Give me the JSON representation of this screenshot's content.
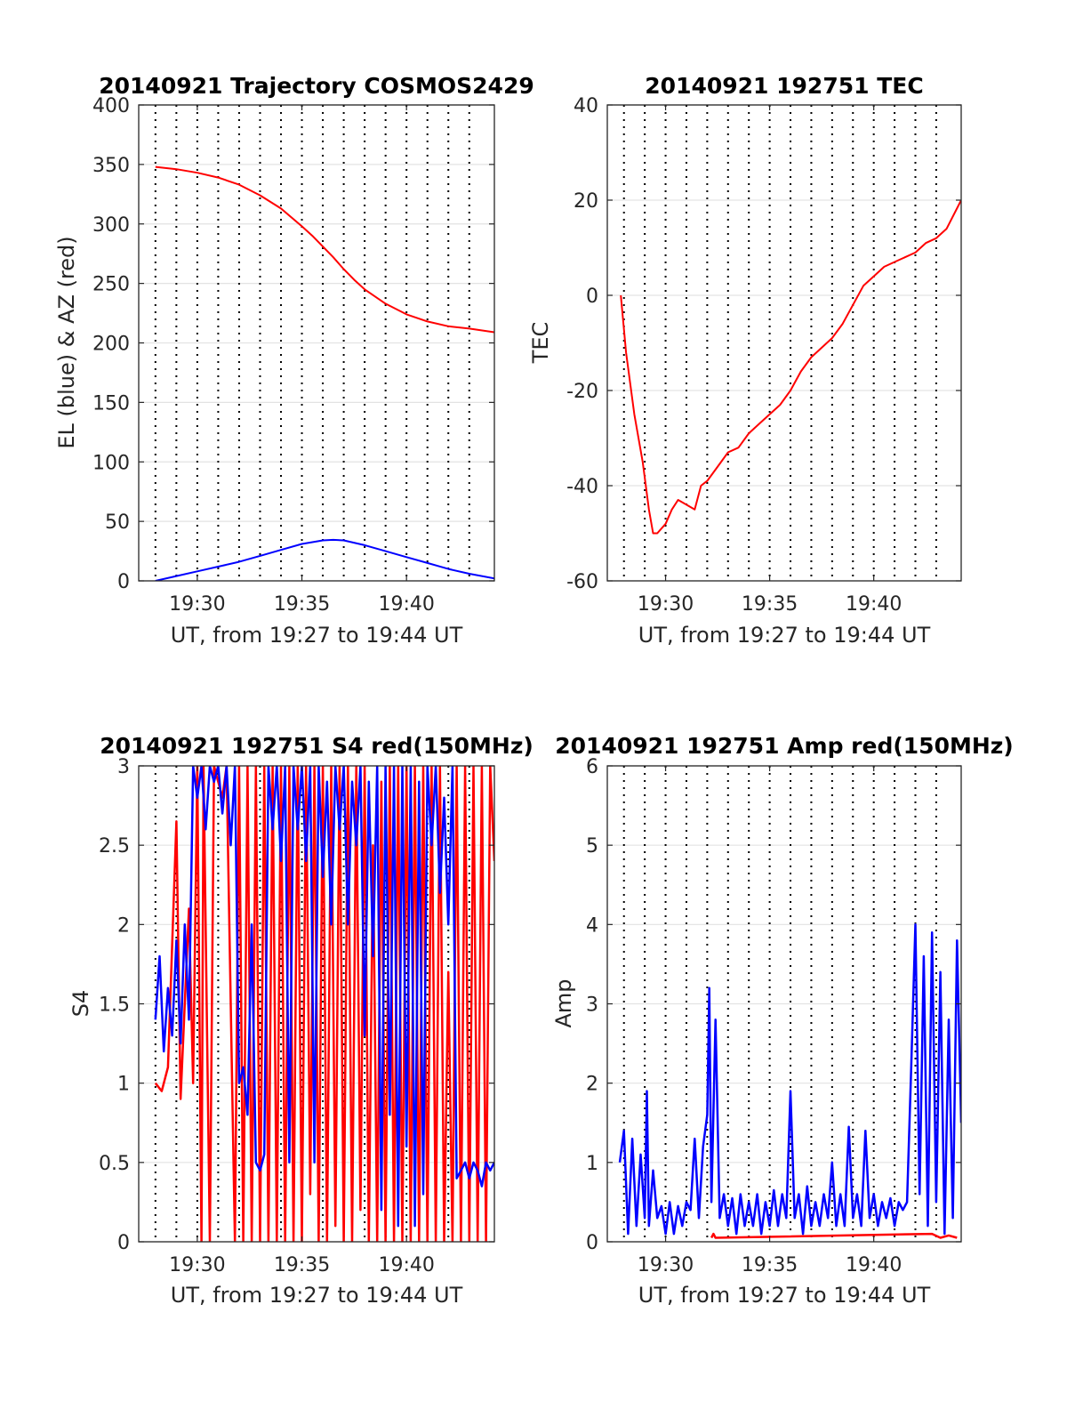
{
  "chart_data": [
    {
      "type": "line",
      "title": "20140921 Trajectory COSMOS2429",
      "xlabel": "UT, from 19:27 to 19:44 UT",
      "ylabel": "EL (blue) & AZ (red)",
      "xlim_minutes": [
        27.2,
        44.2
      ],
      "ylim": [
        0,
        400
      ],
      "xticks": [
        30,
        35,
        40
      ],
      "xtick_labels": [
        "19:30",
        "19:35",
        "19:40"
      ],
      "yticks": [
        0,
        50,
        100,
        150,
        200,
        250,
        300,
        350,
        400
      ],
      "ytick_labels": [
        "0",
        "50",
        "100",
        "150",
        "200",
        "250",
        "300",
        "350",
        "400"
      ],
      "vertical_dotted_lines_minutes": [
        28,
        29,
        30,
        31,
        32,
        33,
        34,
        35,
        36,
        37,
        38,
        39,
        40,
        41,
        42,
        43
      ],
      "grid": "horizontal",
      "series": [
        {
          "color": "#ff0000",
          "x": [
            28,
            29,
            30,
            31,
            32,
            33,
            34,
            35,
            35.5,
            36,
            36.5,
            37,
            37.5,
            38,
            39,
            40,
            41,
            42,
            43,
            44.2
          ],
          "y": [
            348,
            346,
            343,
            339,
            333,
            324,
            313,
            298,
            290,
            281,
            272,
            262,
            253,
            245,
            233,
            224,
            218,
            214,
            212,
            209
          ]
        },
        {
          "color": "#0000ff",
          "x": [
            28,
            29,
            30,
            31,
            32,
            33,
            34,
            35,
            36,
            36.5,
            37,
            38,
            39,
            40,
            41,
            42,
            43,
            44.2
          ],
          "y": [
            0,
            4,
            8,
            12,
            16,
            21,
            26,
            31,
            34,
            34.5,
            34,
            30,
            25,
            20,
            15,
            10,
            6,
            2
          ]
        }
      ]
    },
    {
      "type": "line",
      "title": "20140921 192751 TEC",
      "xlabel": "UT, from 19:27 to 19:44 UT",
      "ylabel": "TEC",
      "xlim_minutes": [
        27.2,
        44.2
      ],
      "ylim": [
        -60,
        40
      ],
      "xticks": [
        30,
        35,
        40
      ],
      "xtick_labels": [
        "19:30",
        "19:35",
        "19:40"
      ],
      "yticks": [
        -60,
        -40,
        -20,
        0,
        20,
        40
      ],
      "ytick_labels": [
        "-60",
        "-40",
        "-20",
        "0",
        "20",
        "40"
      ],
      "vertical_dotted_lines_minutes": [
        28,
        29,
        30,
        31,
        32,
        33,
        34,
        35,
        36,
        37,
        38,
        39,
        40,
        41,
        42,
        43
      ],
      "grid": "horizontal",
      "series": [
        {
          "color": "#ff0000",
          "x": [
            27.85,
            28.1,
            28.5,
            28.9,
            29.2,
            29.4,
            29.6,
            30.0,
            30.3,
            30.6,
            31.0,
            31.4,
            31.7,
            32.0,
            32.5,
            33.0,
            33.5,
            34.0,
            34.5,
            35.0,
            35.5,
            36.0,
            36.5,
            37.0,
            37.5,
            38.0,
            38.5,
            39.0,
            39.5,
            40.0,
            40.5,
            41.0,
            41.5,
            42.0,
            42.5,
            43.0,
            43.5,
            44.2
          ],
          "y": [
            0,
            -12,
            -25,
            -35,
            -45,
            -50,
            -50,
            -48,
            -45,
            -43,
            -44,
            -45,
            -40,
            -39,
            -36,
            -33,
            -32,
            -29,
            -27,
            -25,
            -23,
            -20,
            -16,
            -13,
            -11,
            -9,
            -6,
            -2,
            2,
            4,
            6,
            7,
            8,
            9,
            11,
            12,
            14,
            20
          ]
        }
      ]
    },
    {
      "type": "line",
      "title": "20140921 192751 S4 red(150MHz)",
      "xlabel": "UT, from 19:27 to 19:44 UT",
      "ylabel": "S4",
      "xlim_minutes": [
        27.2,
        44.2
      ],
      "ylim": [
        0,
        3
      ],
      "xticks": [
        30,
        35,
        40
      ],
      "xtick_labels": [
        "19:30",
        "19:35",
        "19:40"
      ],
      "yticks": [
        0,
        0.5,
        1,
        1.5,
        2,
        2.5,
        3
      ],
      "ytick_labels": [
        "0",
        "0.5",
        "1",
        "1.5",
        "2",
        "2.5",
        "3"
      ],
      "vertical_dotted_lines_minutes": [
        28,
        29,
        30,
        31,
        32,
        33,
        34,
        35,
        36,
        37,
        38,
        39,
        40,
        41,
        42,
        43
      ],
      "grid": "horizontal",
      "series": [
        {
          "color": "#ff0000",
          "x": [
            28.0,
            28.3,
            28.6,
            29.0,
            29.2,
            29.6,
            29.8,
            30.0,
            30.2,
            30.3,
            30.6,
            30.8,
            31.2,
            31.4,
            31.8,
            32.0,
            32.2,
            32.4,
            32.6,
            32.8,
            33.0,
            33.2,
            33.4,
            33.6,
            33.8,
            34.0,
            34.2,
            34.4,
            34.6,
            34.8,
            35.0,
            35.2,
            35.4,
            35.6,
            35.8,
            36.0,
            36.2,
            36.4,
            36.6,
            36.8,
            37.0,
            37.2,
            37.4,
            37.6,
            37.8,
            38.0,
            38.2,
            38.4,
            38.6,
            38.8,
            39.0,
            39.2,
            39.4,
            39.6,
            39.8,
            40.0,
            40.2,
            40.4,
            40.6,
            40.8,
            41.0,
            41.2,
            41.4,
            41.6,
            41.8,
            42.0,
            42.2,
            42.4,
            42.6,
            42.8,
            43.0,
            43.2,
            43.4,
            43.6,
            43.8,
            44.0,
            44.2
          ],
          "y": [
            1.0,
            0.95,
            1.1,
            2.65,
            0.9,
            2.1,
            1.0,
            3.0,
            0.0,
            3.0,
            0.0,
            3.0,
            2.8,
            3.0,
            0.0,
            3.0,
            0.0,
            3.0,
            0.0,
            3.0,
            0.0,
            3.0,
            0.0,
            3.0,
            0.0,
            3.0,
            0.0,
            3.0,
            0.0,
            3.0,
            0.0,
            3.0,
            0.3,
            3.0,
            0.0,
            3.0,
            0.0,
            3.0,
            0.1,
            3.0,
            0.0,
            3.0,
            0.0,
            3.0,
            0.2,
            3.0,
            0.0,
            2.5,
            0.0,
            2.9,
            0.0,
            3.0,
            0.0,
            3.0,
            0.0,
            3.0,
            0.0,
            3.0,
            0.0,
            3.0,
            0.0,
            3.0,
            0.0,
            3.0,
            0.0,
            1.7,
            0.0,
            3.0,
            0.0,
            3.0,
            0.0,
            3.0,
            0.0,
            3.0,
            0.0,
            3.0,
            2.4
          ]
        },
        {
          "color": "#0000ff",
          "x": [
            28.0,
            28.2,
            28.4,
            28.6,
            28.8,
            29.0,
            29.2,
            29.4,
            29.6,
            29.8,
            30.0,
            30.2,
            30.4,
            30.6,
            30.8,
            31.0,
            31.2,
            31.4,
            31.6,
            31.8,
            32.0,
            32.2,
            32.4,
            32.6,
            32.8,
            33.0,
            33.2,
            33.4,
            33.6,
            33.8,
            34.0,
            34.2,
            34.4,
            34.6,
            34.8,
            35.0,
            35.2,
            35.4,
            35.6,
            35.8,
            36.0,
            36.2,
            36.4,
            36.6,
            36.8,
            37.0,
            37.2,
            37.4,
            37.6,
            37.8,
            38.0,
            38.2,
            38.4,
            38.6,
            38.8,
            39.0,
            39.2,
            39.4,
            39.6,
            39.8,
            40.0,
            40.2,
            40.4,
            40.6,
            40.8,
            41.0,
            41.2,
            41.4,
            41.6,
            41.8,
            42.0,
            42.2,
            42.4,
            42.6,
            42.8,
            43.0,
            43.2,
            43.4,
            43.6,
            43.8,
            44.0,
            44.2
          ],
          "y": [
            1.4,
            1.8,
            1.2,
            1.6,
            1.3,
            1.9,
            1.25,
            2.0,
            1.4,
            3.0,
            2.8,
            3.0,
            2.6,
            3.0,
            2.9,
            3.0,
            2.7,
            3.0,
            2.5,
            3.0,
            1.0,
            1.1,
            0.8,
            2.0,
            0.5,
            0.45,
            0.55,
            3.0,
            2.6,
            3.0,
            2.4,
            3.0,
            0.5,
            3.0,
            2.6,
            3.0,
            2.4,
            3.0,
            0.5,
            3.0,
            2.3,
            2.9,
            2.0,
            3.0,
            2.6,
            3.0,
            2.0,
            2.9,
            2.5,
            3.0,
            1.3,
            2.9,
            1.8,
            3.0,
            0.2,
            3.0,
            0.8,
            3.0,
            0.1,
            3.0,
            0.6,
            3.0,
            0.1,
            2.9,
            0.3,
            3.0,
            2.5,
            3.0,
            2.2,
            2.8,
            2.0,
            3.0,
            0.4,
            0.45,
            0.5,
            0.4,
            0.5,
            0.45,
            0.35,
            0.5,
            0.45,
            0.5
          ]
        }
      ]
    },
    {
      "type": "line",
      "title": "20140921 192751 Amp red(150MHz)",
      "xlabel": "UT, from 19:27 to 19:44 UT",
      "ylabel": "Amp",
      "xlim_minutes": [
        27.2,
        44.2
      ],
      "ylim": [
        0,
        6
      ],
      "xticks": [
        30,
        35,
        40
      ],
      "xtick_labels": [
        "19:30",
        "19:35",
        "19:40"
      ],
      "yticks": [
        0,
        1,
        2,
        3,
        4,
        5,
        6
      ],
      "ytick_labels": [
        "0",
        "1",
        "2",
        "3",
        "4",
        "5",
        "6"
      ],
      "vertical_dotted_lines_minutes": [
        28,
        29,
        30,
        31,
        32,
        33,
        34,
        35,
        36,
        37,
        38,
        39,
        40,
        41,
        42,
        43
      ],
      "grid": "horizontal",
      "series": [
        {
          "color": "#ff0000",
          "x": [
            32.2,
            32.3,
            32.4,
            42.8,
            43.2,
            43.6,
            44.0
          ],
          "y": [
            0.05,
            0.1,
            0.05,
            0.1,
            0.05,
            0.08,
            0.05
          ]
        },
        {
          "color": "#0000ff",
          "x": [
            27.8,
            28.0,
            28.2,
            28.4,
            28.6,
            28.8,
            29.0,
            29.1,
            29.2,
            29.4,
            29.6,
            29.8,
            30.0,
            30.2,
            30.4,
            30.6,
            30.8,
            31.0,
            31.2,
            31.4,
            31.6,
            31.8,
            32.0,
            32.1,
            32.2,
            32.4,
            32.6,
            32.8,
            33.0,
            33.2,
            33.4,
            33.6,
            33.8,
            34.0,
            34.2,
            34.4,
            34.6,
            34.8,
            35.0,
            35.2,
            35.4,
            35.6,
            35.8,
            36.0,
            36.2,
            36.4,
            36.6,
            36.8,
            37.0,
            37.2,
            37.4,
            37.6,
            37.8,
            38.0,
            38.2,
            38.4,
            38.6,
            38.8,
            39.0,
            39.2,
            39.4,
            39.6,
            39.8,
            40.0,
            40.2,
            40.4,
            40.6,
            40.8,
            41.0,
            41.2,
            41.4,
            41.6,
            41.8,
            42.0,
            42.2,
            42.4,
            42.6,
            42.8,
            43.0,
            43.2,
            43.4,
            43.6,
            43.8,
            44.0,
            44.2
          ],
          "y": [
            1.0,
            1.4,
            0.1,
            1.3,
            0.2,
            1.1,
            0.3,
            1.9,
            0.2,
            0.9,
            0.3,
            0.45,
            0.1,
            0.5,
            0.1,
            0.45,
            0.2,
            0.5,
            0.4,
            1.3,
            0.3,
            1.2,
            1.6,
            3.2,
            0.5,
            2.8,
            0.3,
            0.6,
            0.2,
            0.55,
            0.1,
            0.6,
            0.2,
            0.5,
            0.2,
            0.6,
            0.1,
            0.5,
            0.2,
            0.65,
            0.2,
            0.6,
            0.3,
            1.9,
            0.3,
            0.6,
            0.1,
            0.7,
            0.2,
            0.5,
            0.2,
            0.6,
            0.3,
            1.0,
            0.2,
            0.6,
            0.2,
            1.45,
            0.3,
            0.6,
            0.2,
            1.4,
            0.3,
            0.6,
            0.2,
            0.5,
            0.3,
            0.55,
            0.2,
            0.5,
            0.4,
            0.5,
            2.2,
            4.0,
            0.6,
            3.6,
            0.2,
            3.9,
            0.5,
            3.4,
            0.1,
            2.8,
            0.3,
            3.8,
            1.5
          ]
        }
      ]
    }
  ]
}
